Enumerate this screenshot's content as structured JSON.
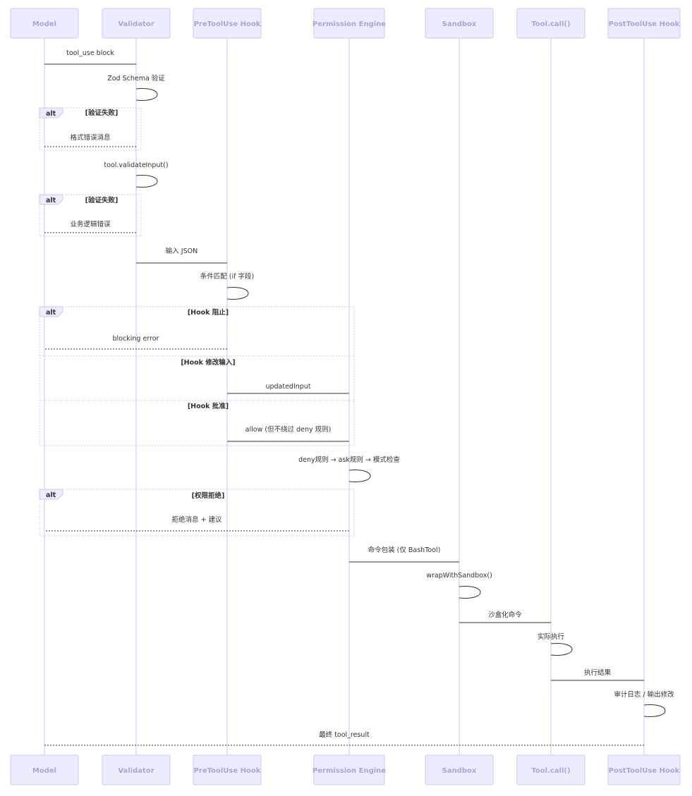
{
  "participants": [
    {
      "id": "model",
      "label": "Model"
    },
    {
      "id": "validator",
      "label": "Validator"
    },
    {
      "id": "pre",
      "label": "PreToolUse Hook"
    },
    {
      "id": "perm",
      "label": "Permission Engine"
    },
    {
      "id": "sandbox",
      "label": "Sandbox"
    },
    {
      "id": "call",
      "label": "Tool.call()"
    },
    {
      "id": "post",
      "label": "PostToolUse Hook"
    }
  ],
  "messages": [
    {
      "from": "model",
      "to": "validator",
      "text": "tool_use block",
      "style": "solid"
    },
    {
      "from": "validator",
      "to": "validator",
      "text": "Zod Schema 验证",
      "style": "self"
    },
    {
      "from": "validator",
      "to": "model",
      "text": "格式错误消息",
      "style": "dotted"
    },
    {
      "from": "validator",
      "to": "validator",
      "text": "tool.validateInput()",
      "style": "self"
    },
    {
      "from": "validator",
      "to": "model",
      "text": "业务逻辑错误",
      "style": "dotted"
    },
    {
      "from": "validator",
      "to": "pre",
      "text": "输入 JSON",
      "style": "solid"
    },
    {
      "from": "pre",
      "to": "pre",
      "text": "条件匹配 (if 字段)",
      "style": "self"
    },
    {
      "from": "pre",
      "to": "model",
      "text": "blocking error",
      "style": "dotted"
    },
    {
      "from": "pre",
      "to": "perm",
      "text": "updatedInput",
      "style": "solid"
    },
    {
      "from": "pre",
      "to": "perm",
      "text": "allow (但不绕过 deny 规则)",
      "style": "solid"
    },
    {
      "from": "perm",
      "to": "perm",
      "text": "deny规则 → ask规则 → 模式检查",
      "style": "self"
    },
    {
      "from": "perm",
      "to": "model",
      "text": "拒绝消息 + 建议",
      "style": "dotted"
    },
    {
      "from": "perm",
      "to": "sandbox",
      "text": "命令包装 (仅 BashTool)",
      "style": "solid"
    },
    {
      "from": "sandbox",
      "to": "sandbox",
      "text": "wrapWithSandbox()",
      "style": "self"
    },
    {
      "from": "sandbox",
      "to": "call",
      "text": "沙盒化命令",
      "style": "solid"
    },
    {
      "from": "call",
      "to": "call",
      "text": "实际执行",
      "style": "self"
    },
    {
      "from": "call",
      "to": "post",
      "text": "执行结果",
      "style": "solid"
    },
    {
      "from": "post",
      "to": "post",
      "text": "审计日志 / 输出修改",
      "style": "self"
    },
    {
      "from": "post",
      "to": "model",
      "text": "最终 tool_result",
      "style": "dotted"
    }
  ],
  "fragments": [
    {
      "type": "alt",
      "sections": [
        "[验证失败]"
      ]
    },
    {
      "type": "alt",
      "sections": [
        "[验证失败]"
      ]
    },
    {
      "type": "alt",
      "sections": [
        "[Hook 阻止]",
        "[Hook 修改输入]",
        "[Hook 批准]"
      ]
    },
    {
      "type": "alt",
      "sections": [
        "[权限拒绝]"
      ]
    }
  ]
}
